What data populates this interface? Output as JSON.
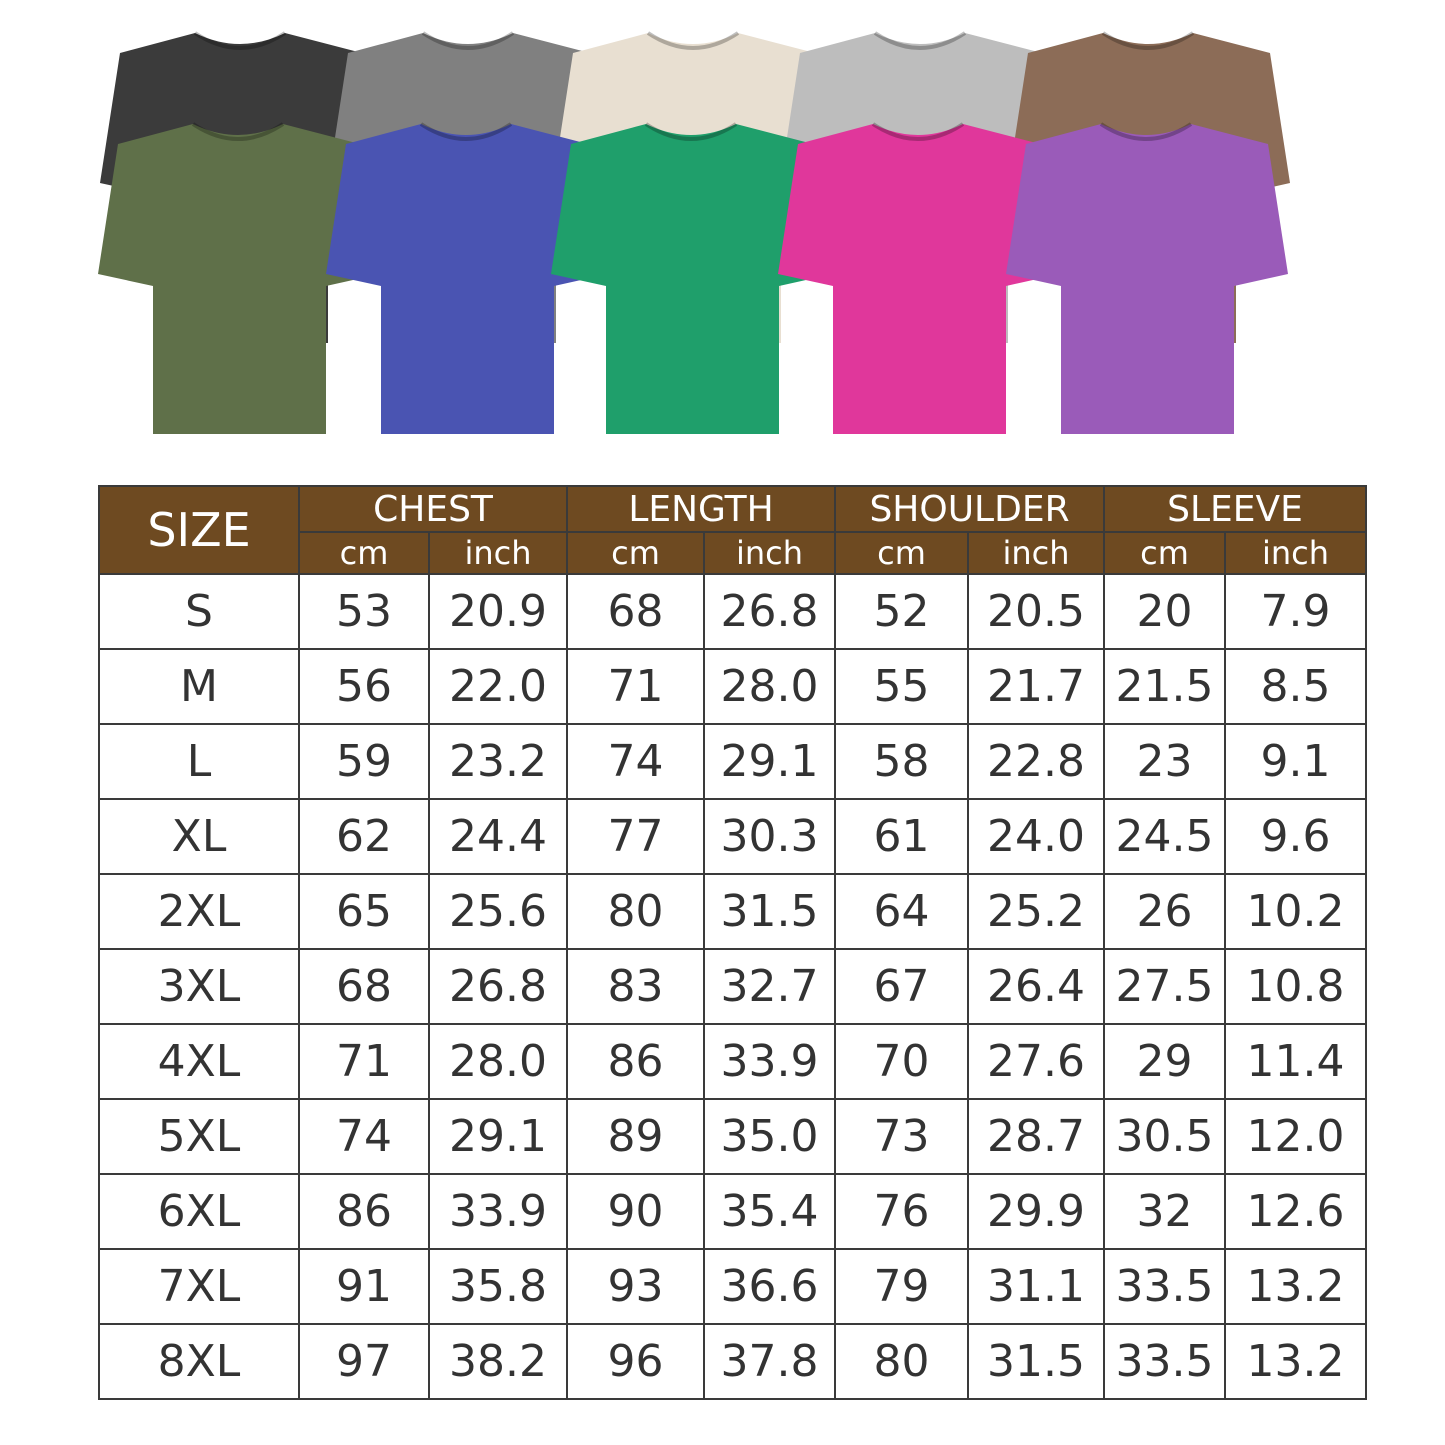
{
  "shirt_colors": {
    "back_row": [
      "#3b3b3b",
      "#808080",
      "#e8dfd1",
      "#bdbdbd",
      "#8c6c57"
    ],
    "front_row": [
      "#5f7049",
      "#4a54b2",
      "#1f9f6b",
      "#e0379b",
      "#9a5bb9"
    ]
  },
  "header_color": "#6e4a21",
  "table": {
    "size_header": "SIZE",
    "groups": [
      "CHEST",
      "LENGTH",
      "SHOULDER",
      "SLEEVE"
    ],
    "units": [
      "cm",
      "inch"
    ],
    "rows": [
      {
        "size": "S",
        "values": [
          "53",
          "20.9",
          "68",
          "26.8",
          "52",
          "20.5",
          "20",
          "7.9"
        ]
      },
      {
        "size": "M",
        "values": [
          "56",
          "22.0",
          "71",
          "28.0",
          "55",
          "21.7",
          "21.5",
          "8.5"
        ]
      },
      {
        "size": "L",
        "values": [
          "59",
          "23.2",
          "74",
          "29.1",
          "58",
          "22.8",
          "23",
          "9.1"
        ]
      },
      {
        "size": "XL",
        "values": [
          "62",
          "24.4",
          "77",
          "30.3",
          "61",
          "24.0",
          "24.5",
          "9.6"
        ]
      },
      {
        "size": "2XL",
        "values": [
          "65",
          "25.6",
          "80",
          "31.5",
          "64",
          "25.2",
          "26",
          "10.2"
        ]
      },
      {
        "size": "3XL",
        "values": [
          "68",
          "26.8",
          "83",
          "32.7",
          "67",
          "26.4",
          "27.5",
          "10.8"
        ]
      },
      {
        "size": "4XL",
        "values": [
          "71",
          "28.0",
          "86",
          "33.9",
          "70",
          "27.6",
          "29",
          "11.4"
        ]
      },
      {
        "size": "5XL",
        "values": [
          "74",
          "29.1",
          "89",
          "35.0",
          "73",
          "28.7",
          "30.5",
          "12.0"
        ]
      },
      {
        "size": "6XL",
        "values": [
          "86",
          "33.9",
          "90",
          "35.4",
          "76",
          "29.9",
          "32",
          "12.6"
        ]
      },
      {
        "size": "7XL",
        "values": [
          "91",
          "35.8",
          "93",
          "36.6",
          "79",
          "31.1",
          "33.5",
          "13.2"
        ]
      },
      {
        "size": "8XL",
        "values": [
          "97",
          "38.2",
          "96",
          "37.8",
          "80",
          "31.5",
          "33.5",
          "13.2"
        ]
      }
    ]
  }
}
